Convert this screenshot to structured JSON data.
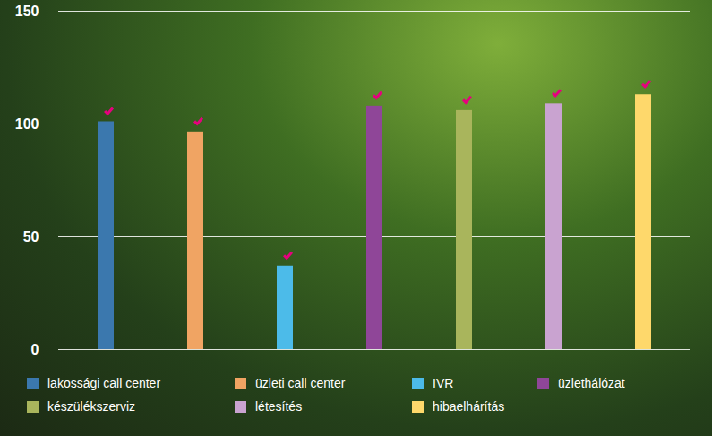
{
  "chart_data": {
    "type": "bar",
    "categories": [
      "lakossági call center",
      "üzleti call center",
      "IVR",
      "üzlethálózat",
      "készülékszerviz",
      "létesítés",
      "hibaelhárítás"
    ],
    "values": [
      101,
      96.5,
      37,
      108,
      106,
      109,
      113
    ],
    "colors": [
      "#3b78ae",
      "#f0a463",
      "#4cbbe9",
      "#8f4698",
      "#a9b55c",
      "#c9a3d0",
      "#fed86b"
    ],
    "ylim": [
      0,
      150
    ],
    "yticks": [
      0,
      50,
      100,
      150
    ],
    "grid": true,
    "legend": "bottom",
    "tick_labels": "y"
  }
}
